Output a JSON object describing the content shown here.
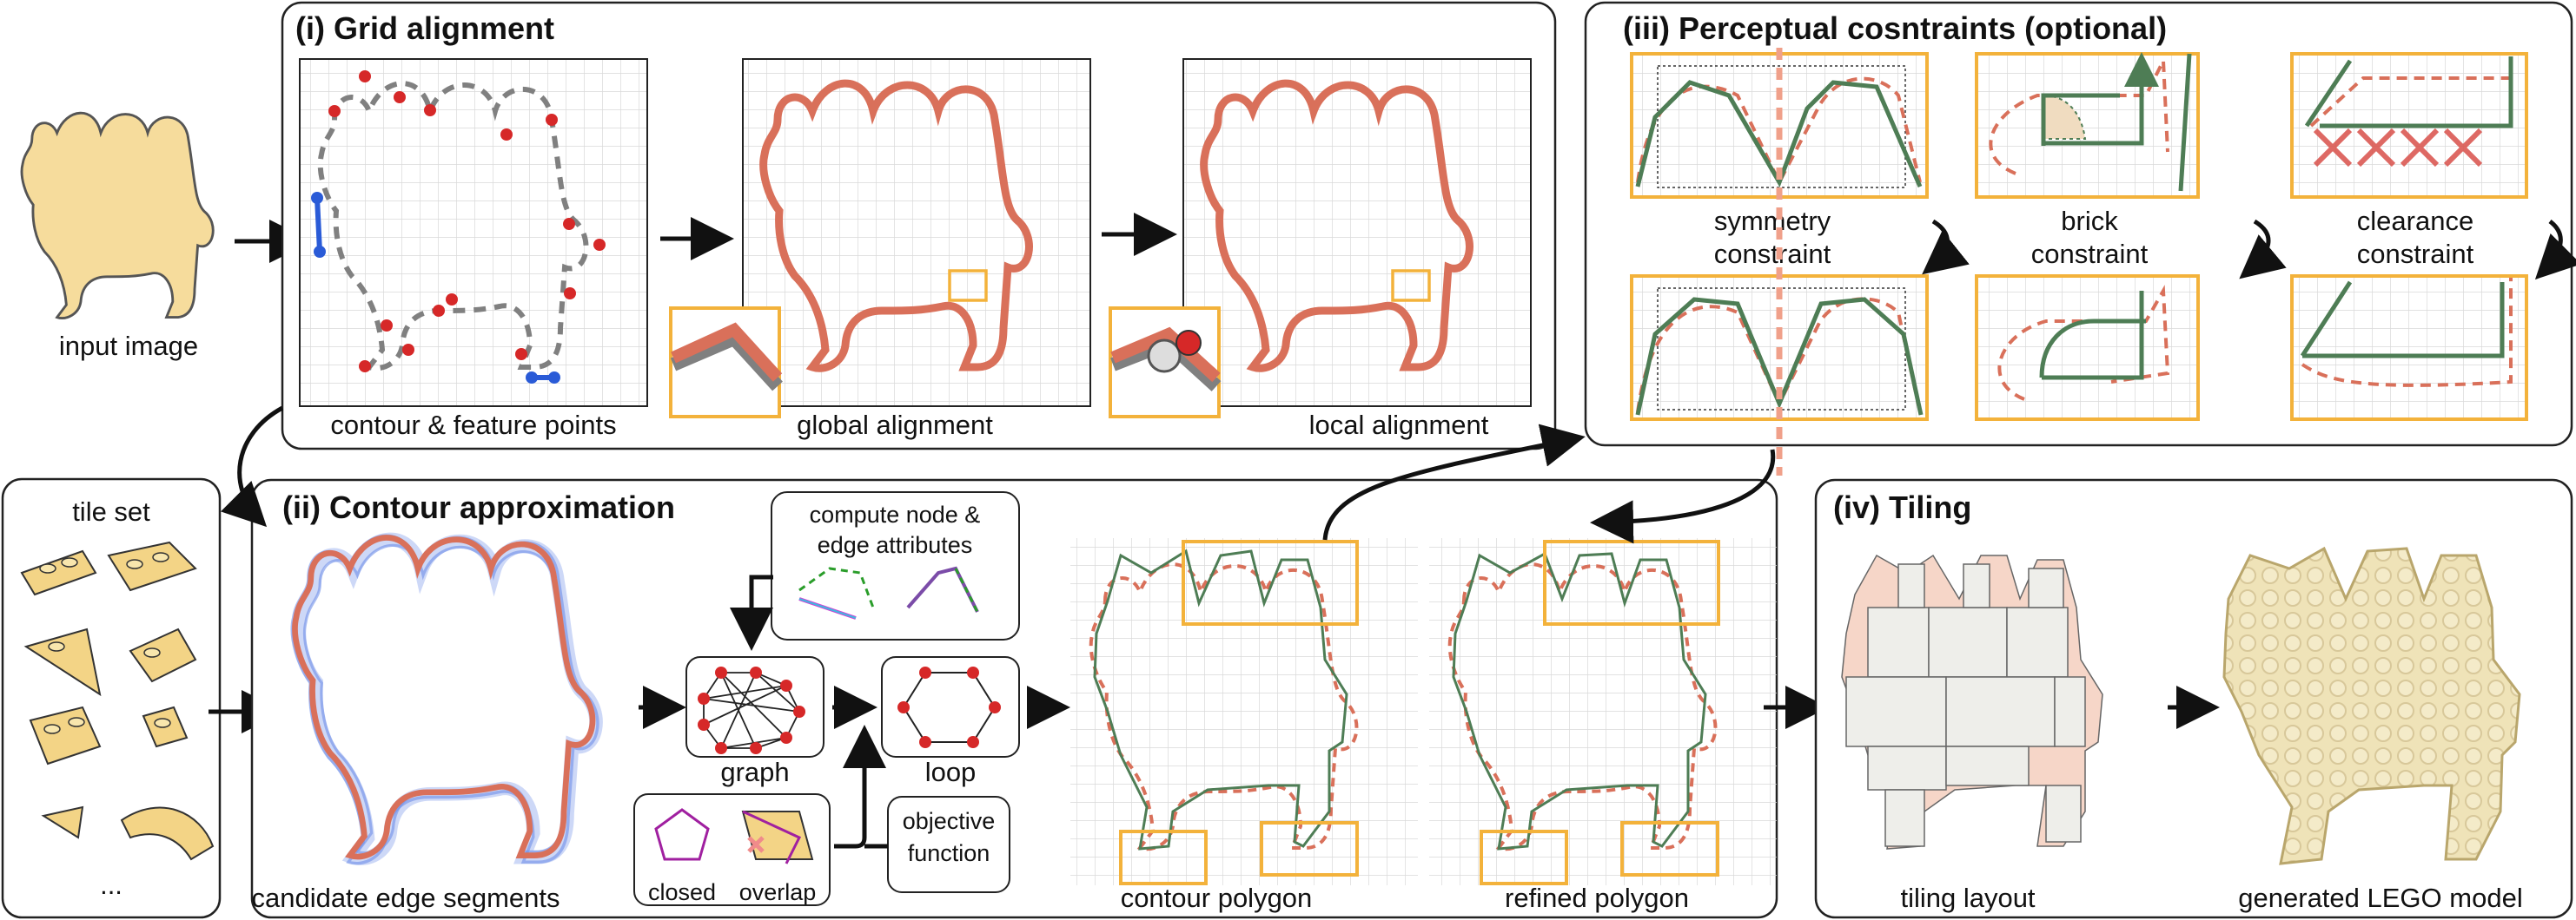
{
  "labels": {
    "input_image": "input image",
    "tile_set": "tile set",
    "ellipsis": "...",
    "panel1_title": "(i) Grid alignment",
    "contour_feature": "contour & feature points",
    "global_alignment": "global alignment",
    "local_alignment": "local alignment",
    "panel3_title": "(iii) Perceptual cosntraints (optional)",
    "symmetry_1": "symmetry",
    "symmetry_2": "constraint",
    "brick_1": "brick",
    "brick_2": "constraint",
    "clearance_1": "clearance",
    "clearance_2": "constraint",
    "panel2_title": "(ii) Contour approximation",
    "compute_attr_1": "compute node &",
    "compute_attr_2": "edge attributes",
    "graph": "graph",
    "loop": "loop",
    "objective_1": "objective",
    "objective_2": "function",
    "closed": "closed",
    "overlap": "overlap",
    "candidate_edges": "candidate edge segments",
    "contour_polygon": "contour polygon",
    "refined_polygon": "refined polygon",
    "panel4_title": "(iv) Tiling",
    "tiling_layout": "tiling layout",
    "lego_model": "generated LEGO model"
  },
  "colors": {
    "panel_border": "#222222",
    "grid": "#d9d9d9",
    "contour_orange": "#d9705a",
    "dashed_gray": "#808080",
    "feature_red": "#d62828",
    "feature_blue": "#2a5bd7",
    "highlight_box": "#f3b23b",
    "polygon_green": "#4e7d55",
    "camel_fill": "#f6dc9c",
    "tile_peach": "#f6d6c8",
    "tile_light": "#eeeeea",
    "lego_fill": "#efe3b8"
  }
}
